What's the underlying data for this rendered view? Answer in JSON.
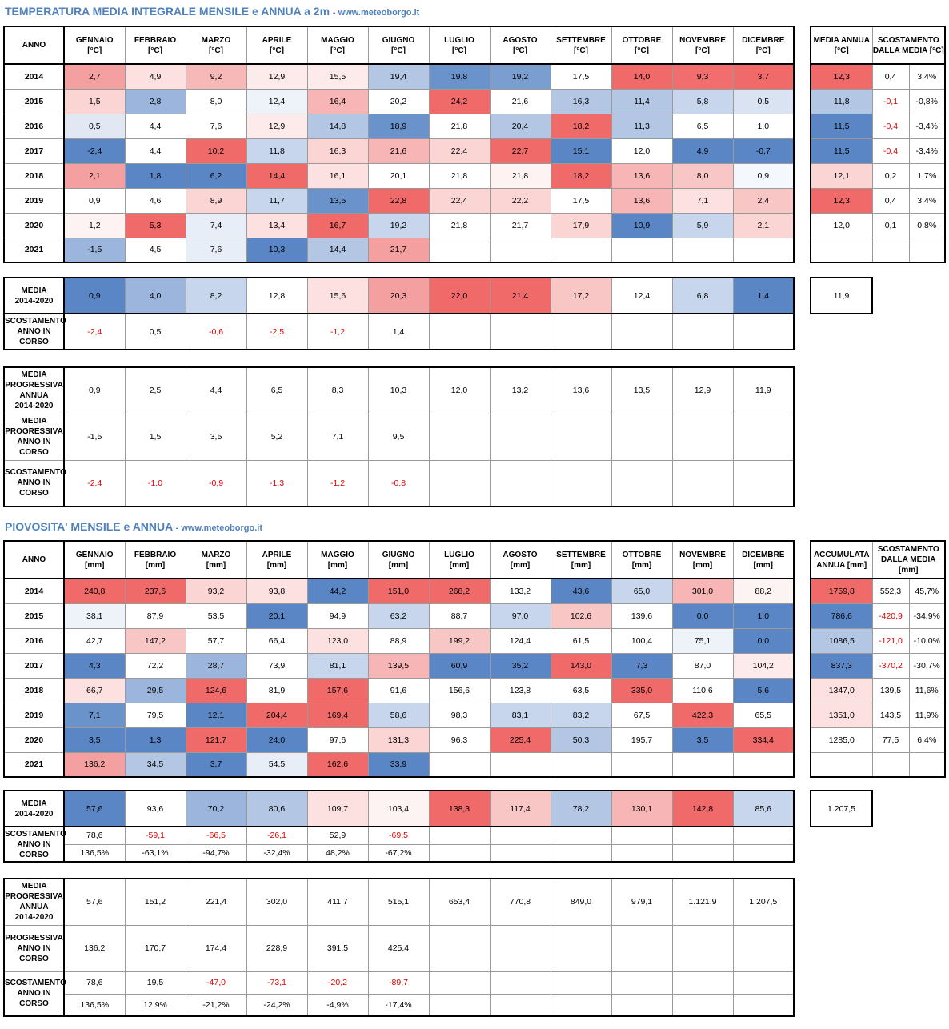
{
  "temperature": {
    "title": "TEMPERATURA MEDIA INTEGRALE MENSILE e ANNUA a 2m",
    "site": "- www.meteoborgo.it",
    "year_header": "ANNO",
    "months": [
      "GENNAIO\n[°C]",
      "FEBBRAIO\n[°C]",
      "MARZO\n[°C]",
      "APRILE\n[°C]",
      "MAGGIO\n[°C]",
      "GIUGNO\n[°C]",
      "LUGLIO\n[°C]",
      "AGOSTO\n[°C]",
      "SETTEMBRE\n[°C]",
      "OTTOBRE\n[°C]",
      "NOVEMBRE\n[°C]",
      "DICEMBRE\n[°C]"
    ],
    "years": [
      "2014",
      "2015",
      "2016",
      "2017",
      "2018",
      "2019",
      "2020",
      "2021"
    ],
    "values": [
      [
        "2,7",
        "4,9",
        "9,2",
        "12,9",
        "15,5",
        "19,4",
        "19,8",
        "19,2",
        "17,5",
        "14,0",
        "9,3",
        "3,7"
      ],
      [
        "1,5",
        "2,8",
        "8,0",
        "12,4",
        "16,4",
        "20,2",
        "24,2",
        "21,6",
        "16,3",
        "11,4",
        "5,8",
        "0,5"
      ],
      [
        "0,5",
        "4,4",
        "7,6",
        "12,9",
        "14,8",
        "18,9",
        "21,8",
        "20,4",
        "18,2",
        "11,3",
        "6,5",
        "1,0"
      ],
      [
        "-2,4",
        "4,4",
        "10,2",
        "11,8",
        "16,3",
        "21,6",
        "22,4",
        "22,7",
        "15,1",
        "12,0",
        "4,9",
        "-0,7"
      ],
      [
        "2,1",
        "1,8",
        "6,2",
        "14,4",
        "16,1",
        "20,1",
        "21,8",
        "21,8",
        "18,2",
        "13,6",
        "8,0",
        "0,9"
      ],
      [
        "0,9",
        "4,6",
        "8,9",
        "11,7",
        "13,5",
        "22,8",
        "22,4",
        "22,2",
        "17,5",
        "13,6",
        "7,1",
        "2,4"
      ],
      [
        "1,2",
        "5,3",
        "7,4",
        "13,4",
        "16,7",
        "19,2",
        "21,8",
        "21,7",
        "17,9",
        "10,9",
        "5,9",
        "2,1"
      ],
      [
        "-1,5",
        "4,5",
        "7,6",
        "10,3",
        "14,4",
        "21,7",
        "",
        "",
        "",
        "",
        "",
        ""
      ]
    ],
    "colors": [
      [
        "#f4a0a0",
        "#fde0e0",
        "#f7b8b8",
        "#fdeaea",
        "#fdeaea",
        "#b3c6e4",
        "#6b93cb",
        "#7a9ed0",
        "#ffffff",
        "#f06a6a",
        "#f26d6d",
        "#f06a6a"
      ],
      [
        "#fbd4d4",
        "#9cb5dc",
        "#ffffff",
        "#eef2f9",
        "#f7b5b5",
        "#ffffff",
        "#f06a6a",
        "#ffffff",
        "#b3c6e4",
        "#b3c6e4",
        "#c7d6ec",
        "#d9e3f1"
      ],
      [
        "#e1e8f4",
        "#ffffff",
        "#ffffff",
        "#fdeaea",
        "#b3c6e4",
        "#6b93cb",
        "#ffffff",
        "#b3c6e4",
        "#f06a6a",
        "#b3c6e4",
        "#ffffff",
        "#ffffff"
      ],
      [
        "#5a86c6",
        "#ffffff",
        "#f06a6a",
        "#c7d6ec",
        "#fbd4d4",
        "#f7b5b5",
        "#fbd4d4",
        "#f06a6a",
        "#5a86c6",
        "#ffffff",
        "#5a86c6",
        "#5a86c6"
      ],
      [
        "#f4a0a0",
        "#5a86c6",
        "#5a86c6",
        "#f06a6a",
        "#fde0e0",
        "#ffffff",
        "#ffffff",
        "#fdf3f3",
        "#f06a6a",
        "#f7b5b5",
        "#f9c6c6",
        "#f4f7fb"
      ],
      [
        "#ffffff",
        "#ffffff",
        "#fbd4d4",
        "#c7d6ec",
        "#6b93cb",
        "#f06a6a",
        "#fbd4d4",
        "#fbd4d4",
        "#ffffff",
        "#f7b5b5",
        "#fde0e0",
        "#f9c6c6"
      ],
      [
        "#fdf3f3",
        "#f06a6a",
        "#e8eef7",
        "#fde0e0",
        "#f06a6a",
        "#c7d6ec",
        "#ffffff",
        "#ffffff",
        "#fbd4d4",
        "#5a86c6",
        "#c7d6ec",
        "#fbd4d4"
      ],
      [
        "#9cb5dc",
        "#ffffff",
        "#e8eef7",
        "#5a86c6",
        "#b3c6e4",
        "#f4a0a0",
        "#ffffff",
        "#ffffff",
        "#ffffff",
        "#ffffff",
        "#ffffff",
        "#ffffff"
      ]
    ],
    "annual_header": "MEDIA ANNUA\n[°C]",
    "deviation_header": "SCOSTAMENTO\nDALLA MEDIA [°C]",
    "annual": [
      [
        "12,3",
        "0,4",
        "3,4%"
      ],
      [
        "11,8",
        "-0,1",
        "-0,8%"
      ],
      [
        "11,5",
        "-0,4",
        "-3,4%"
      ],
      [
        "11,5",
        "-0,4",
        "-3,4%"
      ],
      [
        "12,1",
        "0,2",
        "1,7%"
      ],
      [
        "12,3",
        "0,4",
        "3,4%"
      ],
      [
        "12,0",
        "0,1",
        "0,8%"
      ],
      [
        "",
        "",
        ""
      ]
    ],
    "annual_colors": [
      "#f06a6a",
      "#b3c6e4",
      "#5a86c6",
      "#5a86c6",
      "#fbd4d4",
      "#f06a6a",
      "#ffffff",
      "#ffffff"
    ],
    "mean_label": "MEDIA\n2014-2020",
    "mean": [
      "0,9",
      "4,0",
      "8,2",
      "12,8",
      "15,6",
      "20,3",
      "22,0",
      "21,4",
      "17,2",
      "12,4",
      "6,8",
      "1,4"
    ],
    "mean_colors": [
      "#5a86c6",
      "#9cb5dc",
      "#c7d6ec",
      "#ffffff",
      "#fde0e0",
      "#f4a0a0",
      "#f06a6a",
      "#f06a6a",
      "#f9c6c6",
      "#ffffff",
      "#c7d6ec",
      "#5a86c6"
    ],
    "mean_annual": "11,9",
    "current_dev_label": "SCOSTAMENTO\nANNO IN\nCORSO",
    "current_dev": [
      "-2,4",
      "0,5",
      "-0,6",
      "-2,5",
      "-1,2",
      "1,4",
      "",
      "",
      "",
      "",
      "",
      ""
    ],
    "prog_mean_label": "MEDIA\nPROGRESSIVA\nANNUA\n2014-2020",
    "prog_mean": [
      "0,9",
      "2,5",
      "4,4",
      "6,5",
      "8,3",
      "10,3",
      "12,0",
      "13,2",
      "13,6",
      "13,5",
      "12,9",
      "11,9"
    ],
    "prog_current_label": "MEDIA\nPROGRESSIVA\nANNO IN\nCORSO",
    "prog_current": [
      "-1,5",
      "1,5",
      "3,5",
      "5,2",
      "7,1",
      "9,5",
      "",
      "",
      "",
      "",
      "",
      ""
    ],
    "prog_dev_label": "SCOSTAMENTO\nANNO IN\nCORSO",
    "prog_dev": [
      "-2,4",
      "-1,0",
      "-0,9",
      "-1,3",
      "-1,2",
      "-0,8",
      "",
      "",
      "",
      "",
      "",
      ""
    ]
  },
  "rain": {
    "title": "PIOVOSITA' MENSILE e ANNUA",
    "site": "- www.meteoborgo.it",
    "year_header": "ANNO",
    "months": [
      "GENNAIO\n[mm]",
      "FEBBRAIO\n[mm]",
      "MARZO\n[mm]",
      "APRILE\n[mm]",
      "MAGGIO\n[mm]",
      "GIUGNO\n[mm]",
      "LUGLIO\n[mm]",
      "AGOSTO\n[mm]",
      "SETTEMBRE\n[mm]",
      "OTTOBRE\n[mm]",
      "NOVEMBRE\n[mm]",
      "DICEMBRE\n[mm]"
    ],
    "years": [
      "2014",
      "2015",
      "2016",
      "2017",
      "2018",
      "2019",
      "2020",
      "2021"
    ],
    "values": [
      [
        "240,8",
        "237,6",
        "93,2",
        "93,8",
        "44,2",
        "151,0",
        "268,2",
        "133,2",
        "43,6",
        "65,0",
        "301,0",
        "88,2"
      ],
      [
        "38,1",
        "87,9",
        "53,5",
        "20,1",
        "94,9",
        "63,2",
        "88,7",
        "97,0",
        "102,6",
        "139,6",
        "0,0",
        "1,0"
      ],
      [
        "42,7",
        "147,2",
        "57,7",
        "66,4",
        "123,0",
        "88,9",
        "199,2",
        "124,4",
        "61,5",
        "100,4",
        "75,1",
        "0,0"
      ],
      [
        "4,3",
        "72,2",
        "28,7",
        "73,9",
        "81,1",
        "139,5",
        "60,9",
        "35,2",
        "143,0",
        "7,3",
        "87,0",
        "104,2"
      ],
      [
        "66,7",
        "29,5",
        "124,6",
        "81,9",
        "157,6",
        "91,6",
        "156,6",
        "123,8",
        "63,5",
        "335,0",
        "110,6",
        "5,6"
      ],
      [
        "7,1",
        "79,5",
        "12,1",
        "204,4",
        "169,4",
        "58,6",
        "98,3",
        "83,1",
        "83,2",
        "67,5",
        "422,3",
        "65,5"
      ],
      [
        "3,5",
        "1,3",
        "121,7",
        "24,0",
        "97,6",
        "131,3",
        "96,3",
        "225,4",
        "50,3",
        "195,7",
        "3,5",
        "334,4"
      ],
      [
        "136,2",
        "34,5",
        "3,7",
        "54,5",
        "162,6",
        "33,9",
        "",
        "",
        "",
        "",
        "",
        ""
      ]
    ],
    "colors": [
      [
        "#f06a6a",
        "#f06a6a",
        "#fbd4d4",
        "#fde0e0",
        "#5a86c6",
        "#f06a6a",
        "#f06a6a",
        "#ffffff",
        "#5a86c6",
        "#c7d6ec",
        "#f7b5b5",
        "#fdf3f3"
      ],
      [
        "#eef2f9",
        "#ffffff",
        "#ffffff",
        "#5a86c6",
        "#ffffff",
        "#c7d6ec",
        "#ffffff",
        "#c7d6ec",
        "#f9c6c6",
        "#ffffff",
        "#5a86c6",
        "#5a86c6"
      ],
      [
        "#ffffff",
        "#f9c6c6",
        "#ffffff",
        "#ffffff",
        "#fde0e0",
        "#ffffff",
        "#f9c6c6",
        "#ffffff",
        "#ffffff",
        "#ffffff",
        "#eef2f9",
        "#5a86c6"
      ],
      [
        "#5a86c6",
        "#ffffff",
        "#9cb5dc",
        "#ffffff",
        "#c7d6ec",
        "#f7b5b5",
        "#5a86c6",
        "#5a86c6",
        "#f06a6a",
        "#5a86c6",
        "#ffffff",
        "#fdeaea"
      ],
      [
        "#fde0e0",
        "#9cb5dc",
        "#f06a6a",
        "#ffffff",
        "#f06a6a",
        "#ffffff",
        "#ffffff",
        "#ffffff",
        "#ffffff",
        "#f06a6a",
        "#ffffff",
        "#5a86c6"
      ],
      [
        "#6b93cb",
        "#ffffff",
        "#5a86c6",
        "#f06a6a",
        "#f06a6a",
        "#c7d6ec",
        "#ffffff",
        "#c7d6ec",
        "#c7d6ec",
        "#ffffff",
        "#f06a6a",
        "#ffffff"
      ],
      [
        "#5a86c6",
        "#5a86c6",
        "#f06a6a",
        "#5a86c6",
        "#ffffff",
        "#fbd4d4",
        "#ffffff",
        "#f06a6a",
        "#b3c6e4",
        "#ffffff",
        "#5a86c6",
        "#f06a6a"
      ],
      [
        "#f4a0a0",
        "#b3c6e4",
        "#5a86c6",
        "#e8eef7",
        "#f06a6a",
        "#5a86c6",
        "#ffffff",
        "#ffffff",
        "#ffffff",
        "#ffffff",
        "#ffffff",
        "#ffffff"
      ]
    ],
    "annual_header": "ACCUMULATA\nANNUA [mm]",
    "deviation_header": "SCOSTAMENTO\nDALLA MEDIA\n[mm]",
    "annual": [
      [
        "1759,8",
        "552,3",
        "45,7%"
      ],
      [
        "786,6",
        "-420,9",
        "-34,9%"
      ],
      [
        "1086,5",
        "-121,0",
        "-10,0%"
      ],
      [
        "837,3",
        "-370,2",
        "-30,7%"
      ],
      [
        "1347,0",
        "139,5",
        "11,6%"
      ],
      [
        "1351,0",
        "143,5",
        "11,9%"
      ],
      [
        "1285,0",
        "77,5",
        "6,4%"
      ],
      [
        "",
        "",
        ""
      ]
    ],
    "annual_colors": [
      "#f06a6a",
      "#5a86c6",
      "#b3c6e4",
      "#5a86c6",
      "#fde0e0",
      "#fde0e0",
      "#ffffff",
      "#ffffff"
    ],
    "mean_label": "MEDIA\n2014-2020",
    "mean": [
      "57,6",
      "93,6",
      "70,2",
      "80,6",
      "109,7",
      "103,4",
      "138,3",
      "117,4",
      "78,2",
      "130,1",
      "142,8",
      "85,6"
    ],
    "mean_colors": [
      "#5a86c6",
      "#ffffff",
      "#9cb5dc",
      "#b3c6e4",
      "#fde0e0",
      "#fdf3f3",
      "#f06a6a",
      "#f9c6c6",
      "#b3c6e4",
      "#f7b5b5",
      "#f06a6a",
      "#c7d6ec"
    ],
    "mean_annual": "1.207,5",
    "current_dev_label": "SCOSTAMENTO\nANNO IN\nCORSO",
    "current_dev": [
      "78,6",
      "-59,1",
      "-66,5",
      "-26,1",
      "52,9",
      "-69,5",
      "",
      "",
      "",
      "",
      "",
      ""
    ],
    "current_dev_pct": [
      "136,5%",
      "-63,1%",
      "-94,7%",
      "-32,4%",
      "48,2%",
      "-67,2%",
      "",
      "",
      "",
      "",
      "",
      ""
    ],
    "prog_mean_label": "MEDIA\nPROGRESSIVA\nANNUA\n2014-2020",
    "prog_mean": [
      "57,6",
      "151,2",
      "221,4",
      "302,0",
      "411,7",
      "515,1",
      "653,4",
      "770,8",
      "849,0",
      "979,1",
      "1.121,9",
      "1.207,5"
    ],
    "prog_current_label": "PROGRESSIVA\nANNO IN\nCORSO",
    "prog_current": [
      "136,2",
      "170,7",
      "174,4",
      "228,9",
      "391,5",
      "425,4",
      "",
      "",
      "",
      "",
      "",
      ""
    ],
    "prog_dev_label": "SCOSTAMENTO\nANNO IN\nCORSO",
    "prog_dev": [
      "78,6",
      "19,5",
      "-47,0",
      "-73,1",
      "-20,2",
      "-89,7",
      "",
      "",
      "",
      "",
      "",
      ""
    ],
    "prog_dev_pct": [
      "136,5%",
      "12,9%",
      "-21,2%",
      "-24,2%",
      "-4,9%",
      "-17,4%",
      "",
      "",
      "",
      "",
      "",
      ""
    ]
  }
}
